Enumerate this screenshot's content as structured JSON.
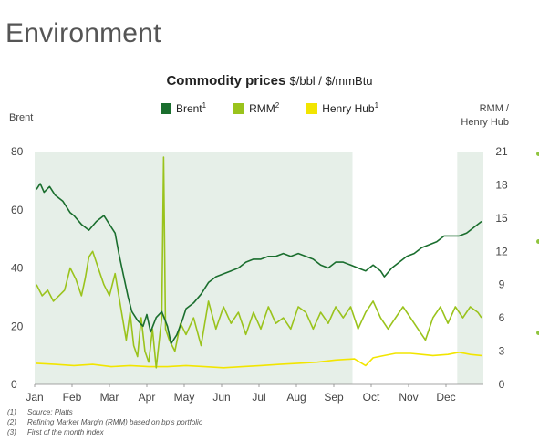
{
  "page": {
    "title": "Environment"
  },
  "chart_data": {
    "type": "line",
    "title": "Commodity prices",
    "unit": "$/bbl / $/mmBtu",
    "left_axis_label": "Brent",
    "right_axis_label_line1": "RMM /",
    "right_axis_label_line2": "Henry Hub",
    "categories": [
      "Jan",
      "Feb",
      "Mar",
      "Apr",
      "May",
      "Jun",
      "Jul",
      "Aug",
      "Sep",
      "Oct",
      "Nov",
      "Dec"
    ],
    "y_left": {
      "min": 0,
      "max": 80,
      "ticks": [
        "0",
        "20",
        "40",
        "60",
        "80"
      ]
    },
    "y_right": {
      "min": 0,
      "max": 21,
      "ticks": [
        "0",
        "3",
        "6",
        "9",
        "12",
        "15",
        "18",
        "21"
      ]
    },
    "shaded_periods_month_index": [
      [
        0,
        8.5
      ],
      [
        11.3,
        12
      ]
    ],
    "colors": {
      "brent": "#1a6e2e",
      "rmm": "#9ac31c",
      "henry": "#f2e500",
      "shade": "#e6efe8",
      "bullet": "#8fc43d"
    },
    "series": [
      {
        "name": "Brent",
        "sup": "1",
        "axis": "left",
        "x": [
          0.0,
          0.1,
          0.2,
          0.35,
          0.5,
          0.7,
          0.9,
          1.0,
          1.2,
          1.4,
          1.6,
          1.8,
          1.95,
          2.1,
          2.2,
          2.35,
          2.45,
          2.55,
          2.7,
          2.85,
          2.95,
          3.05,
          3.2,
          3.35,
          3.5,
          3.6,
          3.75,
          3.9,
          4.0,
          4.2,
          4.4,
          4.6,
          4.8,
          5.0,
          5.2,
          5.4,
          5.6,
          5.8,
          6.0,
          6.2,
          6.4,
          6.6,
          6.8,
          7.0,
          7.2,
          7.4,
          7.6,
          7.8,
          8.0,
          8.2,
          8.4,
          8.6,
          8.8,
          9.0,
          9.2,
          9.3,
          9.5,
          9.7,
          9.9,
          10.1,
          10.3,
          10.5,
          10.7,
          10.9,
          11.1,
          11.3,
          11.5,
          11.7,
          11.9
        ],
        "values": [
          67,
          69,
          66,
          68,
          65,
          63,
          59,
          58,
          55,
          53,
          56,
          58,
          55,
          52,
          45,
          36,
          30,
          25,
          22,
          20,
          24,
          18,
          23,
          25,
          20,
          14,
          17,
          22,
          26,
          28,
          31,
          35,
          37,
          38,
          39,
          40,
          42,
          43,
          43,
          44,
          44,
          45,
          44,
          45,
          44,
          43,
          41,
          40,
          42,
          42,
          41,
          40,
          39,
          41,
          39,
          37,
          40,
          42,
          44,
          45,
          47,
          48,
          49,
          51,
          51,
          51,
          52,
          54,
          56
        ]
      },
      {
        "name": "RMM",
        "sup": "2",
        "axis": "right",
        "x": [
          0.0,
          0.15,
          0.3,
          0.45,
          0.6,
          0.75,
          0.9,
          1.05,
          1.2,
          1.3,
          1.4,
          1.5,
          1.65,
          1.8,
          1.95,
          2.1,
          2.25,
          2.4,
          2.5,
          2.6,
          2.7,
          2.8,
          2.9,
          3.0,
          3.1,
          3.2,
          3.3,
          3.35,
          3.4,
          3.45,
          3.55,
          3.7,
          3.85,
          4.0,
          4.2,
          4.4,
          4.6,
          4.8,
          5.0,
          5.2,
          5.4,
          5.6,
          5.8,
          6.0,
          6.2,
          6.4,
          6.6,
          6.8,
          7.0,
          7.2,
          7.4,
          7.6,
          7.8,
          8.0,
          8.2,
          8.4,
          8.6,
          8.8,
          9.0,
          9.2,
          9.4,
          9.6,
          9.8,
          10.0,
          10.2,
          10.4,
          10.6,
          10.8,
          11.0,
          11.2,
          11.4,
          11.6,
          11.8,
          11.9
        ],
        "values": [
          9.0,
          8.0,
          8.5,
          7.5,
          8.0,
          8.5,
          10.5,
          9.5,
          8.0,
          9.5,
          11.5,
          12.0,
          10.5,
          9.0,
          8.0,
          10.0,
          7.0,
          4.0,
          6.5,
          3.5,
          2.5,
          6.0,
          3.0,
          2.0,
          5.0,
          1.5,
          4.5,
          6.0,
          20.5,
          5.0,
          4.0,
          3.0,
          5.5,
          4.5,
          6.0,
          3.5,
          7.5,
          5.0,
          7.0,
          5.5,
          6.5,
          4.5,
          6.5,
          5.0,
          7.0,
          5.5,
          6.0,
          5.0,
          7.0,
          6.5,
          5.0,
          6.5,
          5.5,
          7.0,
          6.0,
          7.0,
          5.0,
          6.5,
          7.5,
          6.0,
          5.0,
          6.0,
          7.0,
          6.0,
          5.0,
          4.0,
          6.0,
          7.0,
          5.5,
          7.0,
          6.0,
          7.0,
          6.5,
          6.0
        ]
      },
      {
        "name": "Henry Hub",
        "sup": "1",
        "axis": "right",
        "x": [
          0.0,
          0.5,
          1.0,
          1.5,
          2.0,
          2.5,
          3.0,
          3.5,
          4.0,
          4.5,
          5.0,
          5.5,
          6.0,
          6.5,
          7.0,
          7.5,
          8.0,
          8.5,
          8.8,
          9.0,
          9.3,
          9.6,
          10.0,
          10.3,
          10.6,
          11.0,
          11.3,
          11.6,
          11.9
        ],
        "values": [
          1.9,
          1.8,
          1.7,
          1.8,
          1.6,
          1.7,
          1.6,
          1.6,
          1.7,
          1.6,
          1.5,
          1.6,
          1.7,
          1.8,
          1.9,
          2.0,
          2.2,
          2.3,
          1.7,
          2.4,
          2.6,
          2.8,
          2.8,
          2.7,
          2.6,
          2.7,
          2.9,
          2.7,
          2.6
        ]
      }
    ]
  },
  "footnotes": [
    {
      "num": "(1)",
      "text": "Source: Platts"
    },
    {
      "num": "(2)",
      "text": "Refining Marker Margin (RMM) based on bp's portfolio"
    },
    {
      "num": "(3)",
      "text": "First of the month index"
    }
  ]
}
